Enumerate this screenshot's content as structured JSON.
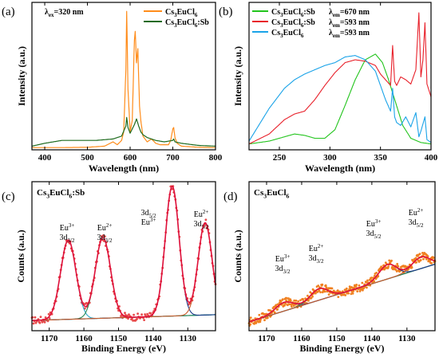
{
  "chart_data": [
    {
      "panel_label": "(a)",
      "type": "line",
      "annotation": "λex=320 nm",
      "xlabel": "Wavelength (nm)",
      "ylabel": "Intensity (a.u.)",
      "xlim": [
        370,
        800
      ],
      "xticks": [
        "400",
        "500",
        "600",
        "700",
        "800"
      ],
      "legend": [
        "Cs3EuCl6",
        "Cs3EuCl6:Sb"
      ],
      "legend_placement": "top-right",
      "series": [
        {
          "name": "Cs3EuCl6",
          "color": "#ff8c1a",
          "x": [
            370,
            440,
            500,
            540,
            560,
            570,
            580,
            585,
            590,
            592,
            595,
            600,
            605,
            610,
            612,
            615,
            618,
            620,
            622,
            625,
            630,
            640,
            650,
            660,
            670,
            690,
            695,
            700,
            702,
            705,
            710,
            720,
            760,
            800
          ],
          "y": [
            0.01,
            0.01,
            0.012,
            0.02,
            0.05,
            0.03,
            0.06,
            0.12,
            0.55,
            0.96,
            0.42,
            0.12,
            0.2,
            0.76,
            0.82,
            0.6,
            0.7,
            0.5,
            0.3,
            0.2,
            0.09,
            0.05,
            0.07,
            0.04,
            0.03,
            0.03,
            0.06,
            0.14,
            0.15,
            0.08,
            0.04,
            0.02,
            0.012,
            0.01
          ]
        },
        {
          "name": "Cs3EuCl6:Sb",
          "color": "#1e6b1e",
          "x": [
            370,
            400,
            440,
            480,
            520,
            560,
            580,
            590,
            592,
            595,
            600,
            610,
            615,
            620,
            625,
            630,
            640,
            660,
            680,
            700,
            702,
            705,
            720,
            760,
            800
          ],
          "y": [
            0.02,
            0.04,
            0.06,
            0.06,
            0.06,
            0.07,
            0.09,
            0.16,
            0.22,
            0.15,
            0.11,
            0.17,
            0.21,
            0.16,
            0.12,
            0.1,
            0.08,
            0.06,
            0.05,
            0.06,
            0.07,
            0.05,
            0.04,
            0.025,
            0.02
          ]
        }
      ]
    },
    {
      "panel_label": "(b)",
      "type": "line",
      "xlabel": "Wavelength (nm)",
      "ylabel": "Intensity (a.u.)",
      "xlim": [
        220,
        400
      ],
      "xticks": [
        "250",
        "300",
        "350",
        "400"
      ],
      "legend": [
        {
          "name": "Cs3EuCl6:Sb",
          "condition": "λem=670 nm",
          "color": "#22c41c"
        },
        {
          "name": "Cs3EuCl6:Sb",
          "condition": "λem=593 nm",
          "color": "#e8202a"
        },
        {
          "name": "Cs3EuCl6",
          "condition": "λem=593 nm",
          "color": "#1aa3e8"
        }
      ],
      "legend_placement": "top-left",
      "series": [
        {
          "name": "Cs3EuCl6:Sb λem=670 nm",
          "color": "#22c41c",
          "x": [
            220,
            240,
            255,
            265,
            275,
            285,
            295,
            305,
            315,
            325,
            335,
            345,
            352,
            358,
            365,
            372,
            380,
            390,
            400
          ],
          "y": [
            0.03,
            0.05,
            0.08,
            0.1,
            0.09,
            0.07,
            0.07,
            0.13,
            0.3,
            0.48,
            0.62,
            0.66,
            0.6,
            0.48,
            0.32,
            0.16,
            0.07,
            0.04,
            0.03
          ]
        },
        {
          "name": "Cs3EuCl6:Sb λem=593 nm",
          "color": "#e8202a",
          "x": [
            220,
            240,
            255,
            265,
            275,
            285,
            295,
            305,
            315,
            325,
            335,
            345,
            350,
            355,
            360,
            362,
            364,
            366,
            370,
            375,
            380,
            385,
            388,
            390,
            392,
            394,
            396,
            400
          ],
          "y": [
            0.03,
            0.1,
            0.2,
            0.24,
            0.26,
            0.34,
            0.44,
            0.53,
            0.6,
            0.62,
            0.61,
            0.58,
            0.52,
            0.48,
            0.44,
            0.72,
            0.47,
            0.44,
            0.5,
            0.48,
            0.45,
            0.55,
            0.95,
            0.5,
            0.62,
            0.88,
            0.45,
            0.36
          ]
        },
        {
          "name": "Cs3EuCl6 λem=593 nm",
          "color": "#1aa3e8",
          "x": [
            220,
            240,
            255,
            265,
            275,
            285,
            295,
            305,
            315,
            325,
            335,
            345,
            350,
            355,
            360,
            362,
            364,
            366,
            370,
            375,
            380,
            385,
            388,
            390,
            394,
            396,
            400
          ],
          "y": [
            0.05,
            0.28,
            0.42,
            0.48,
            0.52,
            0.55,
            0.58,
            0.6,
            0.64,
            0.65,
            0.62,
            0.54,
            0.44,
            0.34,
            0.26,
            0.42,
            0.22,
            0.18,
            0.16,
            0.22,
            0.15,
            0.25,
            0.08,
            0.12,
            0.22,
            0.06,
            0.04
          ]
        }
      ]
    },
    {
      "panel_label": "(c)",
      "type": "scatter",
      "title": "Cs3EuCl6:Sb",
      "xlabel": "Binding Energy (eV)",
      "ylabel": "Counts (a.u.)",
      "xlim": [
        1175,
        1122
      ],
      "xticks": [
        "1170",
        "1160",
        "1150",
        "1140",
        "1130"
      ],
      "annotations": [
        "Eu3+ 3d3/2",
        "Eu2+ 3d3/2",
        "3d5/2 Eu3+",
        "Eu2+ 3d5/2"
      ],
      "fit_peaks": [
        {
          "center": 1164.5,
          "height": 0.55,
          "width": 2.2,
          "color": "#2aa8c8"
        },
        {
          "center": 1154.5,
          "height": 0.56,
          "width": 2.2,
          "color": "#2e8b57"
        },
        {
          "center": 1134.5,
          "height": 0.9,
          "width": 2.0,
          "color": "#1a3a8a"
        },
        {
          "center": 1125.0,
          "height": 0.64,
          "width": 2.0,
          "color": "#cc5a2a"
        }
      ],
      "baseline": [
        0.06,
        0.1
      ],
      "envelope_color": "#e0103a",
      "points_color": "#e84a4a"
    },
    {
      "panel_label": "(d)",
      "type": "scatter",
      "title": "Cs3EuCl6",
      "xlabel": "Binding Energy (eV)",
      "ylabel": "Counts (a.u.)",
      "xlim": [
        1175,
        1122
      ],
      "xticks": [
        "1170",
        "1160",
        "1150",
        "1140",
        "1130"
      ],
      "annotations": [
        "Eu3+ 3d3/2",
        "Eu2+ 3d3/2",
        "Eu3+ 3d5/2",
        "Eu2+ 3d5/2"
      ],
      "fit_peaks": [
        {
          "center": 1165.0,
          "height": 0.06,
          "width": 2.5,
          "color": "#6a3a8a"
        },
        {
          "center": 1155.0,
          "height": 0.08,
          "width": 2.5,
          "color": "#2e8b57"
        },
        {
          "center": 1135.5,
          "height": 0.1,
          "width": 2.5,
          "color": "#1a3a8a"
        },
        {
          "center": 1126.0,
          "height": 0.08,
          "width": 2.5,
          "color": "#cc5a2a"
        }
      ],
      "baseline": [
        0.05,
        0.45
      ],
      "envelope_color": "#e0103a",
      "points_color": "#f08020"
    }
  ]
}
